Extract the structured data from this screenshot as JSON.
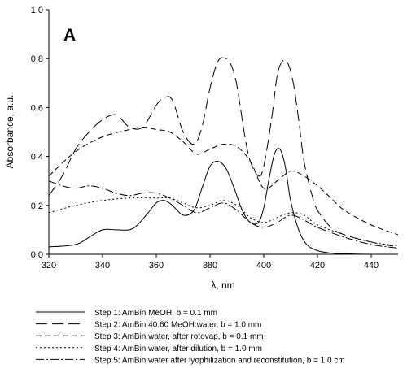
{
  "chart_data": {
    "type": "line",
    "panel_label": "A",
    "xlabel": "λ, nm",
    "ylabel": "Absorbance, a.u.",
    "xlim": [
      320,
      450
    ],
    "ylim": [
      0.0,
      1.0
    ],
    "grid": false,
    "legend_position": "bottom",
    "x_ticks": [
      320,
      340,
      360,
      380,
      400,
      420,
      440
    ],
    "x_tick_labels": [
      "320",
      "340",
      "360",
      "380",
      "400",
      "420",
      "440"
    ],
    "y_ticks": [
      0.0,
      0.2,
      0.4,
      0.6,
      0.8,
      1.0
    ],
    "y_tick_labels": [
      "0.0",
      "0.2",
      "0.4",
      "0.6",
      "0.8",
      "1.0"
    ],
    "series": [
      {
        "name": "Step 1: AmBin MeOH, b = 0.1 mm",
        "dash": "",
        "x": [
          320,
          330,
          335,
          340,
          345,
          350,
          353,
          357,
          360,
          363,
          366,
          370,
          374,
          377,
          380,
          383,
          386,
          389,
          392,
          395,
          398,
          400,
          402,
          404,
          406,
          408,
          410,
          413,
          416,
          420,
          425,
          430,
          440,
          450
        ],
        "y": [
          0.03,
          0.04,
          0.07,
          0.1,
          0.1,
          0.1,
          0.12,
          0.17,
          0.21,
          0.22,
          0.2,
          0.16,
          0.18,
          0.27,
          0.36,
          0.38,
          0.35,
          0.27,
          0.18,
          0.13,
          0.13,
          0.19,
          0.31,
          0.41,
          0.43,
          0.36,
          0.22,
          0.1,
          0.04,
          0.015,
          0.005,
          0.002,
          0.0,
          0.0
        ]
      },
      {
        "name": "Step 2: AmBin 40:60 MeOH:water, b = 1.0 mm",
        "dash": "14,6",
        "x": [
          320,
          325,
          330,
          335,
          340,
          345,
          350,
          355,
          360,
          363,
          366,
          370,
          374,
          377,
          380,
          383,
          386,
          388,
          390,
          393,
          395,
          398,
          400,
          403,
          405,
          407,
          409,
          411,
          413,
          415,
          418,
          420,
          425,
          430,
          440,
          450
        ],
        "y": [
          0.24,
          0.32,
          0.43,
          0.5,
          0.55,
          0.57,
          0.52,
          0.52,
          0.61,
          0.64,
          0.63,
          0.5,
          0.45,
          0.52,
          0.68,
          0.79,
          0.8,
          0.77,
          0.69,
          0.48,
          0.38,
          0.32,
          0.36,
          0.56,
          0.73,
          0.79,
          0.78,
          0.7,
          0.55,
          0.38,
          0.24,
          0.18,
          0.11,
          0.08,
          0.05,
          0.03
        ]
      },
      {
        "name": "Step 3: AmBin water, after rotovap, b = 0.1 mm",
        "dash": "7,4",
        "x": [
          320,
          330,
          340,
          350,
          355,
          360,
          365,
          370,
          375,
          380,
          385,
          390,
          395,
          400,
          405,
          410,
          415,
          420,
          425,
          430,
          440,
          450
        ],
        "y": [
          0.32,
          0.42,
          0.48,
          0.51,
          0.52,
          0.51,
          0.5,
          0.46,
          0.41,
          0.43,
          0.45,
          0.44,
          0.38,
          0.27,
          0.3,
          0.34,
          0.32,
          0.28,
          0.23,
          0.18,
          0.12,
          0.08
        ]
      },
      {
        "name": "Step 4: AmBin water, after dilution, b = 1.0 mm",
        "dash": "2,3",
        "x": [
          320,
          330,
          340,
          350,
          360,
          365,
          370,
          375,
          380,
          385,
          390,
          395,
          400,
          405,
          410,
          415,
          420,
          430,
          440,
          450
        ],
        "y": [
          0.17,
          0.2,
          0.22,
          0.23,
          0.23,
          0.23,
          0.21,
          0.19,
          0.2,
          0.22,
          0.2,
          0.15,
          0.13,
          0.15,
          0.17,
          0.16,
          0.12,
          0.08,
          0.05,
          0.035
        ]
      },
      {
        "name": "Step 5: AmBin water after lyophilization and reconstitution, b = 1.0 cm",
        "dash": "10,3,2,3",
        "x": [
          320,
          325,
          330,
          335,
          340,
          345,
          350,
          355,
          360,
          365,
          370,
          375,
          380,
          385,
          390,
          395,
          400,
          405,
          410,
          415,
          420,
          430,
          440,
          450
        ],
        "y": [
          0.3,
          0.28,
          0.27,
          0.28,
          0.27,
          0.25,
          0.24,
          0.25,
          0.25,
          0.23,
          0.2,
          0.17,
          0.19,
          0.21,
          0.18,
          0.13,
          0.11,
          0.13,
          0.16,
          0.14,
          0.11,
          0.07,
          0.04,
          0.025
        ]
      }
    ]
  }
}
